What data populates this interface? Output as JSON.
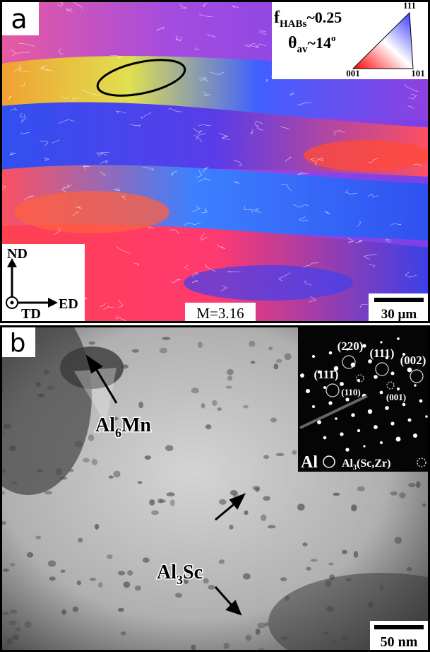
{
  "panel_a": {
    "label": "a",
    "f_symbol": "f",
    "f_subscript": "HABs",
    "f_value": "~0.25",
    "theta_symbol": "θ",
    "theta_subscript": "av",
    "theta_value": "~14",
    "theta_unit": "o",
    "ipf_labels": [
      "111",
      "001",
      "101"
    ],
    "axes": [
      "ND",
      "TD",
      "ED"
    ],
    "magnification": "M=3.16",
    "scale_bar": "30 µm"
  },
  "panel_b": {
    "label": "b",
    "spots": [
      "(220)",
      "(111)",
      "(002)",
      "(111̄)",
      "(110)",
      "(001)"
    ],
    "legend_al": "Al",
    "legend_al3": "Al",
    "legend_al3_sub": "3",
    "legend_al3_rest": "(Sc,Zr)",
    "al6mn": "Al",
    "al6mn_sub": "6",
    "al6mn_rest": "Mn",
    "al3sc": "Al",
    "al3sc_sub": "3",
    "al3sc_rest": "Sc",
    "scale_bar": "50 nm"
  }
}
